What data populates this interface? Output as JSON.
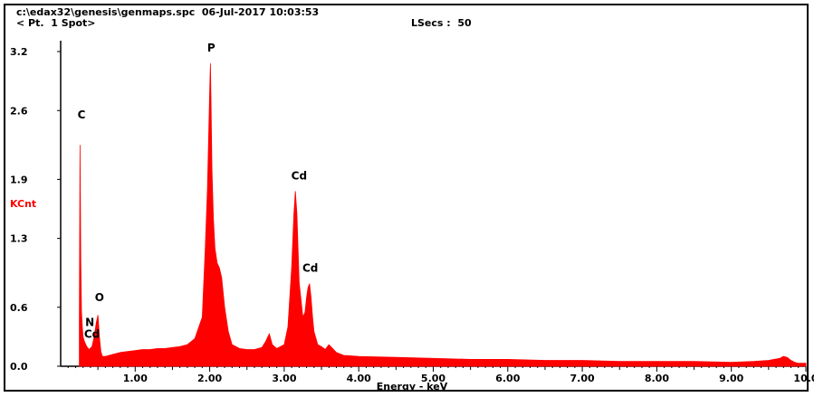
{
  "header": {
    "file_line": "c:\\edax32\\genesis\\genmaps.spc  06-Jul-2017 10:03:53",
    "spot_line": "< Pt.  1 Spot>",
    "lsecs": "LSecs :  50"
  },
  "chart_data": {
    "type": "area",
    "xlabel": "Energy - keV",
    "ylabel": "KCnt",
    "xlim": [
      0.0,
      10.0
    ],
    "ylim": [
      0.0,
      3.2
    ],
    "xticks": [
      1.0,
      2.0,
      3.0,
      4.0,
      5.0,
      6.0,
      7.0,
      8.0,
      9.0,
      10.0
    ],
    "xtick_labels": [
      "1.00",
      "2.00",
      "3.00",
      "4.00",
      "5.00",
      "6.00",
      "7.00",
      "8.00",
      "9.00",
      "10.0"
    ],
    "yticks": [
      0.0,
      0.6,
      1.3,
      1.9,
      2.6,
      3.2
    ],
    "ytick_labels": [
      "0.0",
      "0.6",
      "1.3",
      "1.9",
      "2.6",
      "3.2"
    ],
    "color": "#ff0000",
    "x": [
      0.25,
      0.26,
      0.27,
      0.28,
      0.29,
      0.3,
      0.32,
      0.35,
      0.38,
      0.42,
      0.45,
      0.48,
      0.5,
      0.52,
      0.54,
      0.56,
      0.6,
      0.7,
      0.8,
      0.9,
      1.0,
      1.1,
      1.2,
      1.3,
      1.4,
      1.5,
      1.6,
      1.7,
      1.8,
      1.9,
      1.94,
      1.97,
      2.0,
      2.01,
      2.02,
      2.03,
      2.05,
      2.07,
      2.1,
      2.13,
      2.16,
      2.2,
      2.25,
      2.3,
      2.4,
      2.5,
      2.6,
      2.7,
      2.75,
      2.8,
      2.84,
      2.9,
      3.0,
      3.05,
      3.1,
      3.13,
      3.15,
      3.17,
      3.2,
      3.25,
      3.28,
      3.3,
      3.32,
      3.34,
      3.36,
      3.38,
      3.4,
      3.45,
      3.5,
      3.55,
      3.6,
      3.7,
      3.8,
      4.0,
      4.5,
      5.0,
      5.5,
      6.0,
      6.5,
      7.0,
      7.5,
      8.0,
      8.5,
      9.0,
      9.3,
      9.5,
      9.65,
      9.7,
      9.75,
      9.8,
      9.85,
      9.9,
      10.0
    ],
    "y": [
      0.45,
      2.25,
      1.1,
      0.55,
      0.4,
      0.3,
      0.25,
      0.2,
      0.17,
      0.2,
      0.3,
      0.45,
      0.52,
      0.3,
      0.15,
      0.1,
      0.1,
      0.12,
      0.14,
      0.15,
      0.16,
      0.17,
      0.17,
      0.18,
      0.18,
      0.19,
      0.2,
      0.22,
      0.28,
      0.5,
      1.2,
      1.8,
      2.8,
      3.08,
      2.6,
      2.0,
      1.5,
      1.2,
      1.05,
      1.0,
      0.9,
      0.6,
      0.35,
      0.22,
      0.18,
      0.17,
      0.17,
      0.19,
      0.25,
      0.33,
      0.22,
      0.18,
      0.22,
      0.4,
      1.0,
      1.55,
      1.78,
      1.55,
      0.85,
      0.5,
      0.55,
      0.7,
      0.8,
      0.84,
      0.7,
      0.5,
      0.35,
      0.22,
      0.2,
      0.17,
      0.22,
      0.14,
      0.11,
      0.1,
      0.09,
      0.08,
      0.07,
      0.07,
      0.06,
      0.06,
      0.05,
      0.05,
      0.05,
      0.04,
      0.05,
      0.06,
      0.08,
      0.1,
      0.09,
      0.06,
      0.04,
      0.03,
      0.03
    ],
    "annotations": [
      {
        "text": "C",
        "x": 0.28,
        "y": 2.52
      },
      {
        "text": "P",
        "x": 2.02,
        "y": 3.2
      },
      {
        "text": "Cd",
        "x": 3.2,
        "y": 1.9
      },
      {
        "text": "Cd",
        "x": 3.35,
        "y": 0.96
      },
      {
        "text": "O",
        "x": 0.52,
        "y": 0.66
      },
      {
        "text": "N",
        "x": 0.39,
        "y": 0.41
      },
      {
        "text": "Cd",
        "x": 0.42,
        "y": 0.29
      }
    ]
  }
}
